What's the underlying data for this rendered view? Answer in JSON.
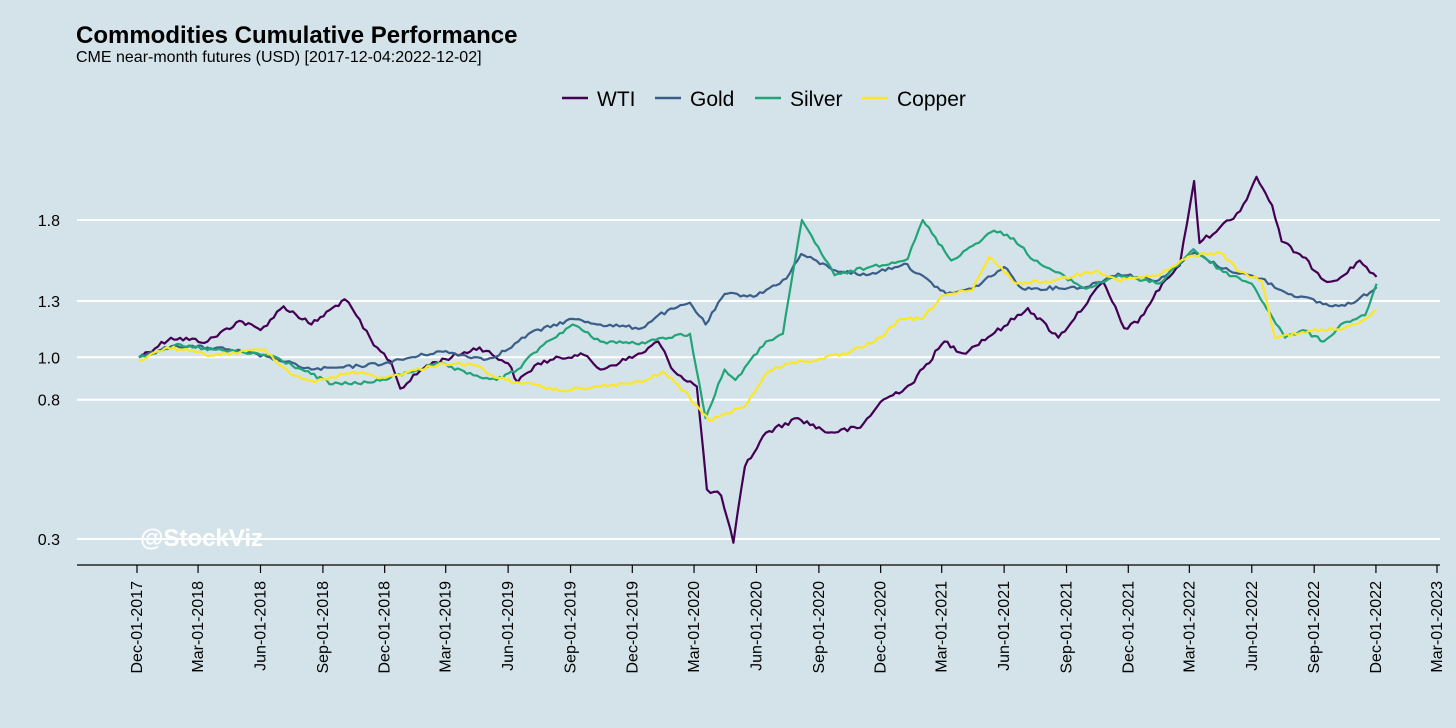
{
  "chart_data": {
    "type": "line",
    "title": "Commodities Cumulative Performance",
    "subtitle": "CME near-month futures (USD) [2017-12-04:2022-12-02]",
    "xlabel": "",
    "ylabel": "",
    "legend_position": "top-center",
    "grid": "horizontal",
    "watermark": "@StockViz",
    "colors": {
      "background": "#d4e3ea",
      "grid": "#ffffff",
      "axis": "#000000"
    },
    "y_ticks": [
      0.3,
      0.8,
      1.0,
      1.3,
      1.8
    ],
    "y_tick_labels": [
      "0.3",
      "0.8",
      "1.0",
      "1.3",
      "1.8"
    ],
    "x_ticks": [
      "2017-12-01",
      "2018-03-01",
      "2018-06-01",
      "2018-09-01",
      "2018-12-01",
      "2019-03-01",
      "2019-06-01",
      "2019-09-01",
      "2019-12-01",
      "2020-03-01",
      "2020-06-01",
      "2020-09-01",
      "2020-12-01",
      "2021-03-01",
      "2021-06-01",
      "2021-09-01",
      "2021-12-01",
      "2022-03-01",
      "2022-06-01",
      "2022-09-01",
      "2022-12-01",
      "2023-03-01"
    ],
    "x_tick_labels": [
      "Dec-01-2017",
      "Mar-01-2018",
      "Jun-01-2018",
      "Sep-01-2018",
      "Dec-01-2018",
      "Mar-01-2019",
      "Jun-01-2019",
      "Sep-01-2019",
      "Dec-01-2019",
      "Mar-01-2020",
      "Jun-01-2020",
      "Sep-01-2020",
      "Dec-01-2020",
      "Mar-01-2021",
      "Jun-01-2021",
      "Sep-01-2021",
      "Dec-01-2021",
      "Mar-01-2022",
      "Jun-01-2022",
      "Sep-01-2022",
      "Dec-01-2022",
      "Mar-01-2023"
    ],
    "series": [
      {
        "name": "WTI",
        "color": "#440154",
        "points": [
          [
            "2017-12-04",
            1.0
          ],
          [
            "2018-01-20",
            1.1
          ],
          [
            "2018-03-15",
            1.08
          ],
          [
            "2018-05-01",
            1.19
          ],
          [
            "2018-06-01",
            1.14
          ],
          [
            "2018-07-05",
            1.27
          ],
          [
            "2018-08-15",
            1.17
          ],
          [
            "2018-10-03",
            1.31
          ],
          [
            "2018-10-20",
            1.22
          ],
          [
            "2018-11-15",
            1.06
          ],
          [
            "2018-12-10",
            0.98
          ],
          [
            "2018-12-24",
            0.85
          ],
          [
            "2019-02-01",
            0.96
          ],
          [
            "2019-04-20",
            1.05
          ],
          [
            "2019-06-01",
            0.97
          ],
          [
            "2019-06-15",
            0.88
          ],
          [
            "2019-07-15",
            0.97
          ],
          [
            "2019-09-16",
            1.02
          ],
          [
            "2019-10-15",
            0.94
          ],
          [
            "2019-12-15",
            1.02
          ],
          [
            "2020-01-08",
            1.08
          ],
          [
            "2020-02-01",
            0.93
          ],
          [
            "2020-03-05",
            0.86
          ],
          [
            "2020-03-20",
            0.45
          ],
          [
            "2020-04-10",
            0.43
          ],
          [
            "2020-04-28",
            0.29
          ],
          [
            "2020-05-15",
            0.53
          ],
          [
            "2020-06-15",
            0.66
          ],
          [
            "2020-08-01",
            0.72
          ],
          [
            "2020-09-15",
            0.66
          ],
          [
            "2020-11-01",
            0.68
          ],
          [
            "2020-12-01",
            0.79
          ],
          [
            "2021-01-15",
            0.87
          ],
          [
            "2021-03-05",
            1.08
          ],
          [
            "2021-04-01",
            1.02
          ],
          [
            "2021-06-01",
            1.16
          ],
          [
            "2021-07-06",
            1.26
          ],
          [
            "2021-08-20",
            1.1
          ],
          [
            "2021-10-25",
            1.41
          ],
          [
            "2021-11-25",
            1.15
          ],
          [
            "2021-12-15",
            1.18
          ],
          [
            "2022-01-20",
            1.4
          ],
          [
            "2022-02-15",
            1.51
          ],
          [
            "2022-03-08",
            2.07
          ],
          [
            "2022-03-16",
            1.65
          ],
          [
            "2022-04-15",
            1.75
          ],
          [
            "2022-05-15",
            1.86
          ],
          [
            "2022-06-08",
            2.1
          ],
          [
            "2022-07-01",
            1.9
          ],
          [
            "2022-07-15",
            1.66
          ],
          [
            "2022-08-15",
            1.56
          ],
          [
            "2022-09-20",
            1.41
          ],
          [
            "2022-10-15",
            1.45
          ],
          [
            "2022-11-07",
            1.54
          ],
          [
            "2022-12-02",
            1.44
          ]
        ]
      },
      {
        "name": "Gold",
        "color": "#3b5e88",
        "points": [
          [
            "2017-12-04",
            1.0
          ],
          [
            "2018-01-25",
            1.06
          ],
          [
            "2018-04-15",
            1.04
          ],
          [
            "2018-06-15",
            1.0
          ],
          [
            "2018-08-15",
            0.94
          ],
          [
            "2018-10-01",
            0.95
          ],
          [
            "2018-12-01",
            0.97
          ],
          [
            "2019-02-20",
            1.03
          ],
          [
            "2019-05-01",
            0.99
          ],
          [
            "2019-06-01",
            1.04
          ],
          [
            "2019-07-01",
            1.12
          ],
          [
            "2019-09-04",
            1.2
          ],
          [
            "2019-10-15",
            1.17
          ],
          [
            "2019-12-15",
            1.15
          ],
          [
            "2020-01-08",
            1.22
          ],
          [
            "2020-02-24",
            1.29
          ],
          [
            "2020-03-18",
            1.17
          ],
          [
            "2020-04-15",
            1.34
          ],
          [
            "2020-06-01",
            1.33
          ],
          [
            "2020-07-15",
            1.43
          ],
          [
            "2020-08-06",
            1.58
          ],
          [
            "2020-09-25",
            1.48
          ],
          [
            "2020-11-10",
            1.45
          ],
          [
            "2021-01-05",
            1.52
          ],
          [
            "2021-03-08",
            1.34
          ],
          [
            "2021-04-15",
            1.37
          ],
          [
            "2021-06-01",
            1.5
          ],
          [
            "2021-06-28",
            1.37
          ],
          [
            "2021-09-30",
            1.38
          ],
          [
            "2021-11-16",
            1.46
          ],
          [
            "2022-01-15",
            1.42
          ],
          [
            "2022-03-08",
            1.59
          ],
          [
            "2022-04-20",
            1.49
          ],
          [
            "2022-06-15",
            1.43
          ],
          [
            "2022-07-20",
            1.35
          ],
          [
            "2022-09-28",
            1.27
          ],
          [
            "2022-10-30",
            1.29
          ],
          [
            "2022-12-02",
            1.38
          ]
        ]
      },
      {
        "name": "Silver",
        "color": "#21a478",
        "points": [
          [
            "2017-12-04",
            1.0
          ],
          [
            "2018-01-25",
            1.06
          ],
          [
            "2018-04-15",
            1.03
          ],
          [
            "2018-06-15",
            1.01
          ],
          [
            "2018-08-01",
            0.94
          ],
          [
            "2018-09-15",
            0.87
          ],
          [
            "2018-11-15",
            0.88
          ],
          [
            "2019-02-20",
            0.97
          ],
          [
            "2019-04-01",
            0.92
          ],
          [
            "2019-05-15",
            0.89
          ],
          [
            "2019-06-15",
            0.94
          ],
          [
            "2019-07-18",
            1.05
          ],
          [
            "2019-09-04",
            1.17
          ],
          [
            "2019-10-15",
            1.08
          ],
          [
            "2019-12-20",
            1.07
          ],
          [
            "2020-01-15",
            1.1
          ],
          [
            "2020-02-24",
            1.12
          ],
          [
            "2020-03-18",
            0.72
          ],
          [
            "2020-04-15",
            0.94
          ],
          [
            "2020-05-01",
            0.89
          ],
          [
            "2020-06-15",
            1.08
          ],
          [
            "2020-07-10",
            1.12
          ],
          [
            "2020-08-07",
            1.8
          ],
          [
            "2020-09-24",
            1.45
          ],
          [
            "2020-11-15",
            1.5
          ],
          [
            "2021-01-10",
            1.55
          ],
          [
            "2021-02-01",
            1.8
          ],
          [
            "2021-03-15",
            1.54
          ],
          [
            "2021-05-17",
            1.73
          ],
          [
            "2021-06-15",
            1.68
          ],
          [
            "2021-07-15",
            1.54
          ],
          [
            "2021-09-30",
            1.37
          ],
          [
            "2021-11-16",
            1.45
          ],
          [
            "2022-01-15",
            1.4
          ],
          [
            "2022-03-07",
            1.61
          ],
          [
            "2022-04-20",
            1.47
          ],
          [
            "2022-06-01",
            1.4
          ],
          [
            "2022-07-20",
            1.1
          ],
          [
            "2022-08-15",
            1.14
          ],
          [
            "2022-09-15",
            1.08
          ],
          [
            "2022-10-15",
            1.18
          ],
          [
            "2022-11-15",
            1.22
          ],
          [
            "2022-12-02",
            1.4
          ]
        ]
      },
      {
        "name": "Copper",
        "color": "#fde725",
        "points": [
          [
            "2017-12-04",
            0.98
          ],
          [
            "2018-01-15",
            1.05
          ],
          [
            "2018-03-20",
            1.01
          ],
          [
            "2018-06-07",
            1.04
          ],
          [
            "2018-07-15",
            0.92
          ],
          [
            "2018-08-20",
            0.88
          ],
          [
            "2018-10-15",
            0.93
          ],
          [
            "2018-12-01",
            0.9
          ],
          [
            "2019-02-25",
            0.97
          ],
          [
            "2019-04-15",
            0.96
          ],
          [
            "2019-05-15",
            0.9
          ],
          [
            "2019-06-15",
            0.88
          ],
          [
            "2019-08-15",
            0.84
          ],
          [
            "2019-10-15",
            0.86
          ],
          [
            "2019-12-15",
            0.88
          ],
          [
            "2020-01-15",
            0.93
          ],
          [
            "2020-02-15",
            0.84
          ],
          [
            "2020-03-23",
            0.71
          ],
          [
            "2020-04-15",
            0.74
          ],
          [
            "2020-05-15",
            0.77
          ],
          [
            "2020-06-15",
            0.92
          ],
          [
            "2020-07-15",
            0.97
          ],
          [
            "2020-08-15",
            0.98
          ],
          [
            "2020-10-15",
            1.02
          ],
          [
            "2020-12-01",
            1.1
          ],
          [
            "2020-12-31",
            1.2
          ],
          [
            "2021-02-01",
            1.2
          ],
          [
            "2021-03-01",
            1.33
          ],
          [
            "2021-04-15",
            1.36
          ],
          [
            "2021-05-10",
            1.56
          ],
          [
            "2021-06-20",
            1.4
          ],
          [
            "2021-08-15",
            1.42
          ],
          [
            "2021-10-15",
            1.48
          ],
          [
            "2021-11-15",
            1.42
          ],
          [
            "2022-01-15",
            1.45
          ],
          [
            "2022-03-04",
            1.57
          ],
          [
            "2022-04-15",
            1.59
          ],
          [
            "2022-05-15",
            1.47
          ],
          [
            "2022-06-15",
            1.42
          ],
          [
            "2022-07-05",
            1.1
          ],
          [
            "2022-08-15",
            1.13
          ],
          [
            "2022-09-15",
            1.14
          ],
          [
            "2022-10-15",
            1.15
          ],
          [
            "2022-11-15",
            1.2
          ],
          [
            "2022-12-02",
            1.25
          ]
        ]
      }
    ]
  }
}
